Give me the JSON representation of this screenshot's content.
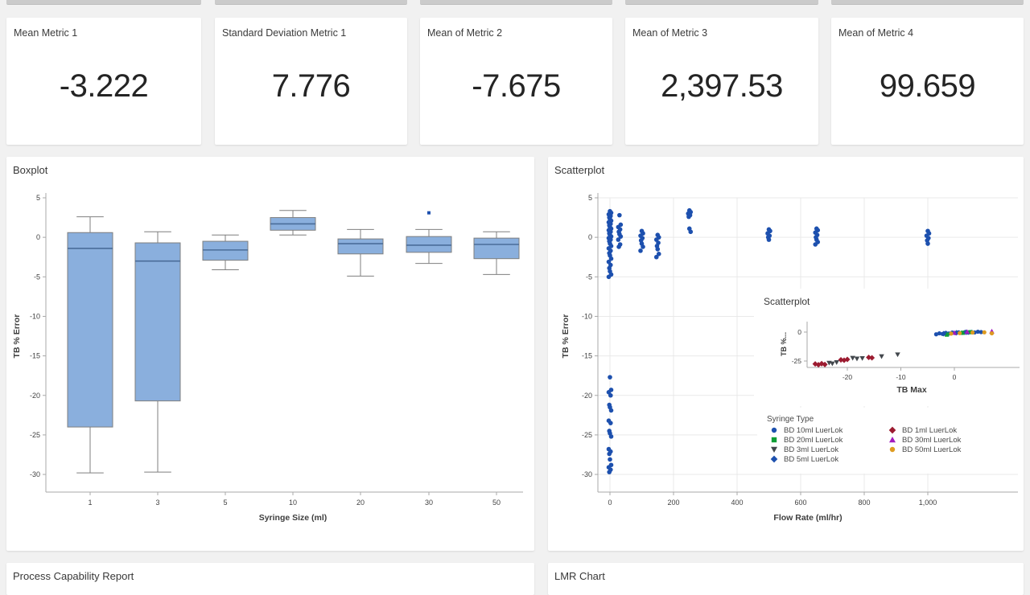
{
  "page": {
    "bg": "#f1f1f1",
    "card_bg": "#ffffff"
  },
  "metric_cards": [
    {
      "title": "Mean Metric 1",
      "value": "-3.222"
    },
    {
      "title": "Standard Deviation Metric 1",
      "value": "7.776"
    },
    {
      "title": "Mean of Metric 2",
      "value": "-7.675"
    },
    {
      "title": "Mean of Metric 3",
      "value": "2,397.53"
    },
    {
      "title": "Mean of Metric 4",
      "value": "99.659"
    }
  ],
  "panels": {
    "boxplot_title": "Boxplot",
    "scatter_title": "Scatterplot",
    "bottom_left_title": "Process Capability Report",
    "bottom_right_title": "LMR Chart"
  },
  "colors": {
    "blue": "#1d50ae",
    "green": "#0f9e36",
    "dark": "#42474c",
    "red": "#9c1b30",
    "magenta": "#a21bbf",
    "orange": "#de9b20",
    "box_fill": "#8aafdd",
    "box_stroke": "#7f7f7f",
    "median": "#4a6d99",
    "grid": "#e9e9e9",
    "axis": "#a8a8a8",
    "tick_text": "#414141",
    "label_text": "#3d3d3d",
    "legend_text": "#4a4a4a"
  },
  "chart_data": [
    {
      "type": "box",
      "title": "Boxplot",
      "xlabel": "Syringe Size (ml)",
      "ylabel": "TB % Error",
      "ylim": [
        -32,
        5
      ],
      "yticks": [
        5,
        0,
        -5,
        -10,
        -15,
        -20,
        -25,
        -30
      ],
      "categories": [
        "1",
        "3",
        "5",
        "10",
        "20",
        "30",
        "50"
      ],
      "boxes": [
        {
          "whislo": -29.8,
          "q1": -24.0,
          "med": -1.4,
          "q3": 0.6,
          "whishi": 2.6,
          "outliers": []
        },
        {
          "whislo": -29.7,
          "q1": -20.7,
          "med": -3.0,
          "q3": -0.7,
          "whishi": 0.7,
          "outliers": []
        },
        {
          "whislo": -4.1,
          "q1": -2.9,
          "med": -1.6,
          "q3": -0.5,
          "whishi": 0.3,
          "outliers": []
        },
        {
          "whislo": 0.3,
          "q1": 0.9,
          "med": 1.7,
          "q3": 2.5,
          "whishi": 3.4,
          "outliers": []
        },
        {
          "whislo": -4.9,
          "q1": -2.1,
          "med": -0.8,
          "q3": -0.2,
          "whishi": 1.0,
          "outliers": []
        },
        {
          "whislo": -3.3,
          "q1": -1.9,
          "med": -1.0,
          "q3": 0.1,
          "whishi": 1.0,
          "outliers": [
            3.1
          ]
        },
        {
          "whislo": -4.7,
          "q1": -2.7,
          "med": -0.9,
          "q3": -0.1,
          "whishi": 0.7,
          "outliers": []
        }
      ]
    },
    {
      "type": "scatter",
      "title": "Scatterplot",
      "xlabel": "Flow Rate (ml/hr)",
      "ylabel": "TB % Error",
      "xlim": [
        -50,
        1060
      ],
      "ylim": [
        -32,
        5
      ],
      "grid": true,
      "xtick_values": [
        0,
        200,
        400,
        600,
        800,
        1000
      ],
      "xtick_labels": [
        "0",
        "200",
        "400",
        "600",
        "800",
        "1,000"
      ],
      "yticks": [
        5,
        0,
        -5,
        -10,
        -15,
        -20,
        -25,
        -30
      ],
      "point_color": "#1d50ae",
      "clusters": [
        {
          "x": 0,
          "ys": [
            3.3,
            3.1,
            2.9,
            2.7,
            2.5,
            2.3,
            2.1,
            1.9,
            1.7,
            1.5,
            1.3,
            1.1,
            0.9,
            0.7,
            0.5,
            0.3,
            0.1,
            -0.1,
            -0.3,
            -0.5,
            -0.8,
            -1.1,
            -1.4,
            -1.7,
            -2.0,
            -2.3,
            -2.7,
            -3.1,
            -3.5,
            -3.9,
            -4.3,
            -4.7,
            -5.0
          ]
        },
        {
          "x": 0,
          "ys": [
            -17.7,
            -19.3,
            -19.6,
            -20.0,
            -21.2,
            -21.5,
            -21.9,
            -23.2,
            -23.5,
            -24.5,
            -24.8,
            -25.2,
            -26.8,
            -27.1,
            -27.4,
            -28.1,
            -28.8,
            -29.1,
            -29.4,
            -29.7
          ]
        },
        {
          "x": 30,
          "ys": [
            2.8,
            1.6,
            1.3,
            1.0,
            0.7,
            0.4,
            0.1,
            -0.3,
            -0.9,
            -1.2
          ]
        },
        {
          "x": 100,
          "ys": [
            0.8,
            0.5,
            0.2,
            -0.1,
            -0.4,
            -0.8,
            -1.2,
            -1.7
          ]
        },
        {
          "x": 150,
          "ys": [
            0.3,
            0.0,
            -0.3,
            -0.7,
            -1.1,
            -1.5,
            -2.1,
            -2.5
          ]
        },
        {
          "x": 250,
          "ys": [
            3.4,
            3.2,
            3.0,
            2.8,
            2.6,
            1.1,
            0.7
          ]
        },
        {
          "x": 500,
          "ys": [
            1.0,
            0.8,
            0.5,
            0.2,
            0.0,
            -0.3
          ]
        },
        {
          "x": 650,
          "ys": [
            1.1,
            0.9,
            0.6,
            0.3,
            0.0,
            -0.3,
            -0.6,
            -0.9
          ]
        },
        {
          "x": 1000,
          "ys": [
            0.8,
            0.5,
            0.2,
            -0.1,
            -0.4,
            -0.8
          ]
        }
      ],
      "inset": {
        "title": "Scatterplot",
        "xlabel": "TB Max",
        "ylabel": "TB %...",
        "xticks": [
          -20,
          -10,
          0
        ],
        "yticks": [
          0,
          -25
        ],
        "series": [
          {
            "name": "BD 1ml LuerLok",
            "marker": "diamond",
            "color": "#9c1b30",
            "points": [
              [
                -26,
                -27.5
              ],
              [
                -25.4,
                -28.2
              ],
              [
                -24.8,
                -27.3
              ],
              [
                -24.2,
                -28
              ],
              [
                -21.2,
                -24
              ],
              [
                -20.6,
                -24.3
              ],
              [
                -20,
                -23.6
              ],
              [
                -16,
                -21.9
              ],
              [
                -15.4,
                -22.2
              ]
            ]
          },
          {
            "name": "BD 3ml LuerLok",
            "marker": "triangle-down",
            "color": "#42474c",
            "points": [
              [
                -23.4,
                -26.6
              ],
              [
                -22.8,
                -27.2
              ],
              [
                -22,
                -26.1
              ],
              [
                -19,
                -22.4
              ],
              [
                -18.2,
                -23
              ],
              [
                -17.2,
                -22.6
              ],
              [
                -13.6,
                -21
              ],
              [
                -10.6,
                -19.4
              ]
            ]
          },
          {
            "name": "BD 10ml LuerLok",
            "marker": "circle",
            "color": "#1d50ae",
            "points": [
              [
                -3.4,
                -1.9
              ],
              [
                -2.8,
                -1.1
              ],
              [
                -2.2,
                -1.6
              ],
              [
                -1.6,
                -0.7
              ],
              [
                -1,
                -1.2
              ],
              [
                -0.4,
                -0.4
              ],
              [
                0.2,
                -0.9
              ],
              [
                0.8,
                -0.2
              ],
              [
                1.4,
                -0.7
              ],
              [
                2,
                0
              ],
              [
                2.6,
                -0.5
              ],
              [
                3.2,
                0.1
              ],
              [
                3.8,
                -0.3
              ],
              [
                4.4,
                0.3
              ],
              [
                5,
                0
              ]
            ]
          },
          {
            "name": "BD 20ml LuerLok",
            "marker": "square",
            "color": "#0f9e36",
            "points": [
              [
                -1.4,
                -2.2
              ],
              [
                1.6,
                -0.6
              ],
              [
                3,
                -0.1
              ]
            ]
          },
          {
            "name": "BD 5ml LuerLok",
            "marker": "diamond",
            "color": "#1d50ae",
            "points": [
              [
                -2,
                -1.4
              ],
              [
                0.4,
                -0.6
              ],
              [
                2.2,
                -0.2
              ]
            ]
          },
          {
            "name": "BD 30ml LuerLok",
            "marker": "triangle-up",
            "color": "#a21bbf",
            "points": [
              [
                0,
                -0.6
              ],
              [
                2.4,
                0.2
              ],
              [
                7,
                0.6
              ]
            ]
          },
          {
            "name": "BD 50ml LuerLok",
            "marker": "circle",
            "color": "#de9b20",
            "points": [
              [
                -0.6,
                -1.3
              ],
              [
                1,
                -0.9
              ],
              [
                3.4,
                -0.4
              ],
              [
                5.6,
                -0.2
              ],
              [
                7,
                -1.1
              ]
            ]
          }
        ]
      },
      "legend": {
        "title": "Syringe Type",
        "columns": [
          [
            {
              "label": "BD 10ml LuerLok",
              "marker": "circle",
              "color": "#1d50ae"
            },
            {
              "label": "BD 20ml LuerLok",
              "marker": "square",
              "color": "#0f9e36"
            },
            {
              "label": "BD 3ml LuerLok",
              "marker": "triangle-down",
              "color": "#42474c"
            },
            {
              "label": "BD 5ml LuerLok",
              "marker": "diamond",
              "color": "#1d50ae"
            }
          ],
          [
            {
              "label": "BD 1ml LuerLok",
              "marker": "diamond",
              "color": "#9c1b30"
            },
            {
              "label": "BD 30ml LuerLok",
              "marker": "triangle-up",
              "color": "#a21bbf"
            },
            {
              "label": "BD 50ml LuerLok",
              "marker": "circle",
              "color": "#de9b20"
            }
          ]
        ]
      }
    }
  ]
}
